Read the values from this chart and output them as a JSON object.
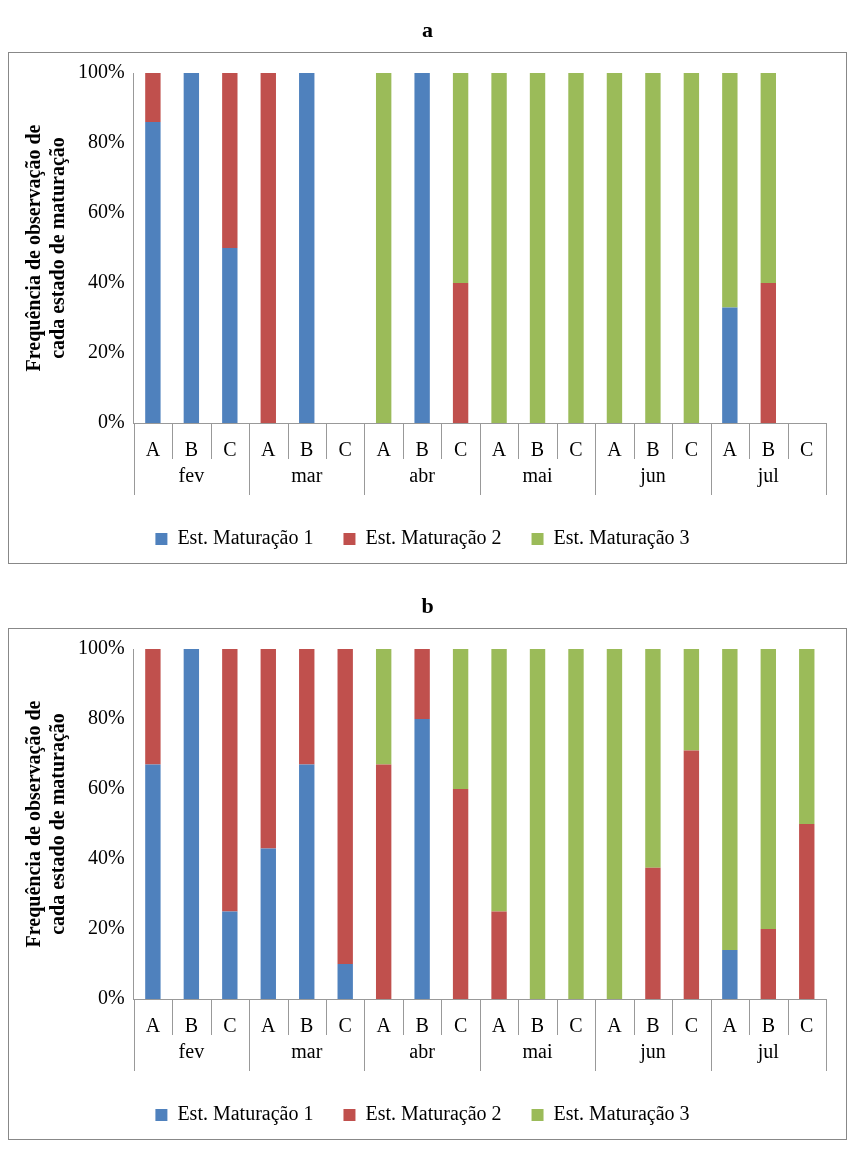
{
  "chart_data": [
    {
      "type": "bar",
      "title": "a",
      "ylabel": "Frequência de observação de cada estado de maturação",
      "categories": [
        "A",
        "B",
        "C",
        "A",
        "B",
        "C",
        "A",
        "B",
        "C",
        "A",
        "B",
        "C",
        "A",
        "B",
        "C",
        "A",
        "B",
        "C"
      ],
      "stacked": true,
      "ylim": [
        0,
        100
      ],
      "yticks": [
        {
          "value": 0,
          "label": "0%"
        },
        {
          "value": 20,
          "label": "20%"
        },
        {
          "value": 40,
          "label": "40%"
        },
        {
          "value": 60,
          "label": "60%"
        },
        {
          "value": 80,
          "label": "80%"
        },
        {
          "value": 100,
          "label": "100%"
        }
      ],
      "legend": "bottom",
      "annotations": [
        "fev",
        "mar",
        "abr",
        "mai",
        "jun",
        "jul"
      ],
      "series": [
        {
          "name": "Est. Maturação 1",
          "color": "#4f81bd",
          "values": [
            86,
            100,
            50,
            null,
            100,
            null,
            null,
            100,
            null,
            null,
            null,
            null,
            null,
            null,
            null,
            33,
            null,
            null
          ]
        },
        {
          "name": "Est. Maturação 2",
          "color": "#c0504d",
          "values": [
            14,
            null,
            50,
            100,
            null,
            null,
            null,
            null,
            40,
            null,
            null,
            null,
            null,
            null,
            null,
            null,
            40,
            null
          ]
        },
        {
          "name": "Est. Maturação 3",
          "color": "#9bbb59",
          "values": [
            null,
            null,
            null,
            null,
            null,
            null,
            100,
            null,
            60,
            100,
            100,
            100,
            100,
            100,
            100,
            67,
            60,
            null
          ]
        }
      ]
    },
    {
      "type": "bar",
      "title": "b",
      "ylabel": "Frequência de observação de cada estado de maturação",
      "categories": [
        "A",
        "B",
        "C",
        "A",
        "B",
        "C",
        "A",
        "B",
        "C",
        "A",
        "B",
        "C",
        "A",
        "B",
        "C",
        "A",
        "B",
        "C"
      ],
      "stacked": true,
      "ylim": [
        0,
        100
      ],
      "yticks": [
        {
          "value": 0,
          "label": "0%"
        },
        {
          "value": 20,
          "label": "20%"
        },
        {
          "value": 40,
          "label": "40%"
        },
        {
          "value": 60,
          "label": "60%"
        },
        {
          "value": 80,
          "label": "80%"
        },
        {
          "value": 100,
          "label": "100%"
        }
      ],
      "legend": "bottom",
      "annotations": [
        "fev",
        "mar",
        "abr",
        "mai",
        "jun",
        "jul"
      ],
      "series": [
        {
          "name": "Est. Maturação 1",
          "color": "#4f81bd",
          "values": [
            67,
            100,
            25,
            43,
            67,
            10,
            null,
            80,
            null,
            null,
            null,
            null,
            null,
            null,
            null,
            14,
            null,
            null
          ]
        },
        {
          "name": "Est. Maturação 2",
          "color": "#c0504d",
          "values": [
            33,
            null,
            75,
            57,
            33,
            90,
            67,
            20,
            60,
            25,
            null,
            null,
            null,
            37.5,
            71,
            null,
            20,
            50
          ]
        },
        {
          "name": "Est. Maturação 3",
          "color": "#9bbb59",
          "values": [
            null,
            null,
            null,
            null,
            null,
            null,
            33,
            null,
            40,
            75,
            100,
            100,
            100,
            62.5,
            29,
            86,
            80,
            50
          ]
        }
      ]
    }
  ]
}
